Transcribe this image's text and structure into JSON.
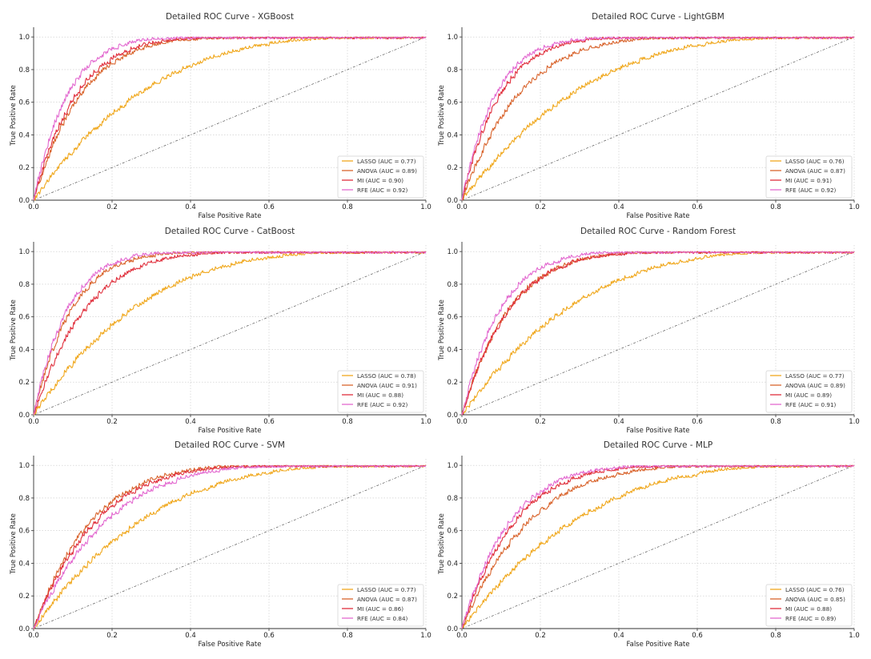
{
  "figure": {
    "xlabel": "False Positive Rate",
    "ylabel": "True Positive Rate",
    "ticks": [
      "0.0",
      "0.2",
      "0.4",
      "0.6",
      "0.8",
      "1.0"
    ]
  },
  "series_colors": {
    "LASSO": "#f0a81e",
    "ANOVA": "#d9652e",
    "MI": "#e0303d",
    "RFE": "#e36ad0"
  },
  "chart_data": [
    {
      "type": "line",
      "title": "Detailed ROC Curve - XGBoost",
      "xlabel": "False Positive Rate",
      "ylabel": "True Positive Rate",
      "xlim": [
        0,
        1
      ],
      "ylim": [
        0,
        1
      ],
      "grid": true,
      "legend": "lower-right",
      "diagonal": true,
      "series": [
        {
          "name": "LASSO",
          "auc": 0.77,
          "label": "LASSO (AUC = 0.77)"
        },
        {
          "name": "ANOVA",
          "auc": 0.89,
          "label": "ANOVA (AUC = 0.89)"
        },
        {
          "name": "MI",
          "auc": 0.9,
          "label": "MI (AUC = 0.90)"
        },
        {
          "name": "RFE",
          "auc": 0.92,
          "label": "RFE (AUC = 0.92)"
        }
      ]
    },
    {
      "type": "line",
      "title": "Detailed ROC Curve - LightGBM",
      "xlabel": "False Positive Rate",
      "ylabel": "True Positive Rate",
      "xlim": [
        0,
        1
      ],
      "ylim": [
        0,
        1
      ],
      "grid": true,
      "legend": "lower-right",
      "diagonal": true,
      "series": [
        {
          "name": "LASSO",
          "auc": 0.76,
          "label": "LASSO (AUC = 0.76)"
        },
        {
          "name": "ANOVA",
          "auc": 0.87,
          "label": "ANOVA (AUC = 0.87)"
        },
        {
          "name": "MI",
          "auc": 0.91,
          "label": "MI (AUC = 0.91)"
        },
        {
          "name": "RFE",
          "auc": 0.92,
          "label": "RFE (AUC = 0.92)"
        }
      ]
    },
    {
      "type": "line",
      "title": "Detailed ROC Curve - CatBoost",
      "xlabel": "False Positive Rate",
      "ylabel": "True Positive Rate",
      "xlim": [
        0,
        1
      ],
      "ylim": [
        0,
        1
      ],
      "grid": true,
      "legend": "lower-right",
      "diagonal": true,
      "series": [
        {
          "name": "LASSO",
          "auc": 0.78,
          "label": "LASSO (AUC = 0.78)"
        },
        {
          "name": "ANOVA",
          "auc": 0.91,
          "label": "ANOVA (AUC = 0.91)"
        },
        {
          "name": "MI",
          "auc": 0.88,
          "label": "MI (AUC = 0.88)"
        },
        {
          "name": "RFE",
          "auc": 0.92,
          "label": "RFE (AUC = 0.92)"
        }
      ]
    },
    {
      "type": "line",
      "title": "Detailed ROC Curve - Random Forest",
      "xlabel": "False Positive Rate",
      "ylabel": "True Positive Rate",
      "xlim": [
        0,
        1
      ],
      "ylim": [
        0,
        1
      ],
      "grid": true,
      "legend": "lower-right",
      "diagonal": true,
      "series": [
        {
          "name": "LASSO",
          "auc": 0.77,
          "label": "LASSO (AUC = 0.77)"
        },
        {
          "name": "ANOVA",
          "auc": 0.89,
          "label": "ANOVA (AUC = 0.89)"
        },
        {
          "name": "MI",
          "auc": 0.89,
          "label": "MI (AUC = 0.89)"
        },
        {
          "name": "RFE",
          "auc": 0.91,
          "label": "RFE (AUC = 0.91)"
        }
      ]
    },
    {
      "type": "line",
      "title": "Detailed ROC Curve - SVM",
      "xlabel": "False Positive Rate",
      "ylabel": "True Positive Rate",
      "xlim": [
        0,
        1
      ],
      "ylim": [
        0,
        1
      ],
      "grid": true,
      "legend": "lower-right",
      "diagonal": true,
      "series": [
        {
          "name": "LASSO",
          "auc": 0.77,
          "label": "LASSO (AUC = 0.77)"
        },
        {
          "name": "ANOVA",
          "auc": 0.87,
          "label": "ANOVA (AUC = 0.87)"
        },
        {
          "name": "MI",
          "auc": 0.86,
          "label": "MI (AUC = 0.86)"
        },
        {
          "name": "RFE",
          "auc": 0.84,
          "label": "RFE (AUC = 0.84)"
        }
      ]
    },
    {
      "type": "line",
      "title": "Detailed ROC Curve - MLP",
      "xlabel": "False Positive Rate",
      "ylabel": "True Positive Rate",
      "xlim": [
        0,
        1
      ],
      "ylim": [
        0,
        1
      ],
      "grid": true,
      "legend": "lower-right",
      "diagonal": true,
      "series": [
        {
          "name": "LASSO",
          "auc": 0.76,
          "label": "LASSO (AUC = 0.76)"
        },
        {
          "name": "ANOVA",
          "auc": 0.85,
          "label": "ANOVA (AUC = 0.85)"
        },
        {
          "name": "MI",
          "auc": 0.88,
          "label": "MI (AUC = 0.88)"
        },
        {
          "name": "RFE",
          "auc": 0.89,
          "label": "RFE (AUC = 0.89)"
        }
      ]
    }
  ]
}
